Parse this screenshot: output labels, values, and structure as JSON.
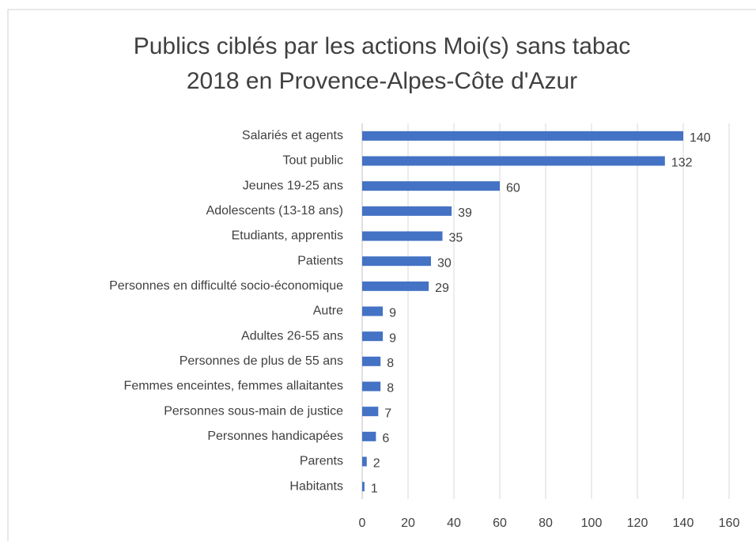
{
  "chart_data": {
    "type": "bar",
    "orientation": "horizontal",
    "title": [
      "Publics ciblés par les actions Moi(s) sans tabac",
      "2018 en Provence-Alpes-Côte d'Azur"
    ],
    "categories": [
      "Salariés et agents",
      "Tout public",
      "Jeunes 19-25 ans",
      "Adolescents (13-18 ans)",
      "Etudiants, apprentis",
      "Patients",
      "Personnes en difficulté socio-économique",
      "Autre",
      "Adultes 26-55 ans",
      "Personnes de plus de 55 ans",
      "Femmes enceintes, femmes allaitantes",
      "Personnes sous-main de justice",
      "Personnes handicapées",
      "Parents",
      "Habitants"
    ],
    "values": [
      140,
      132,
      60,
      39,
      35,
      30,
      29,
      9,
      9,
      8,
      8,
      7,
      6,
      2,
      1
    ],
    "color": "#4472c4",
    "xlim": [
      0,
      160
    ],
    "xticks": [
      0,
      20,
      40,
      60,
      80,
      100,
      120,
      140,
      160
    ],
    "grid": true
  }
}
